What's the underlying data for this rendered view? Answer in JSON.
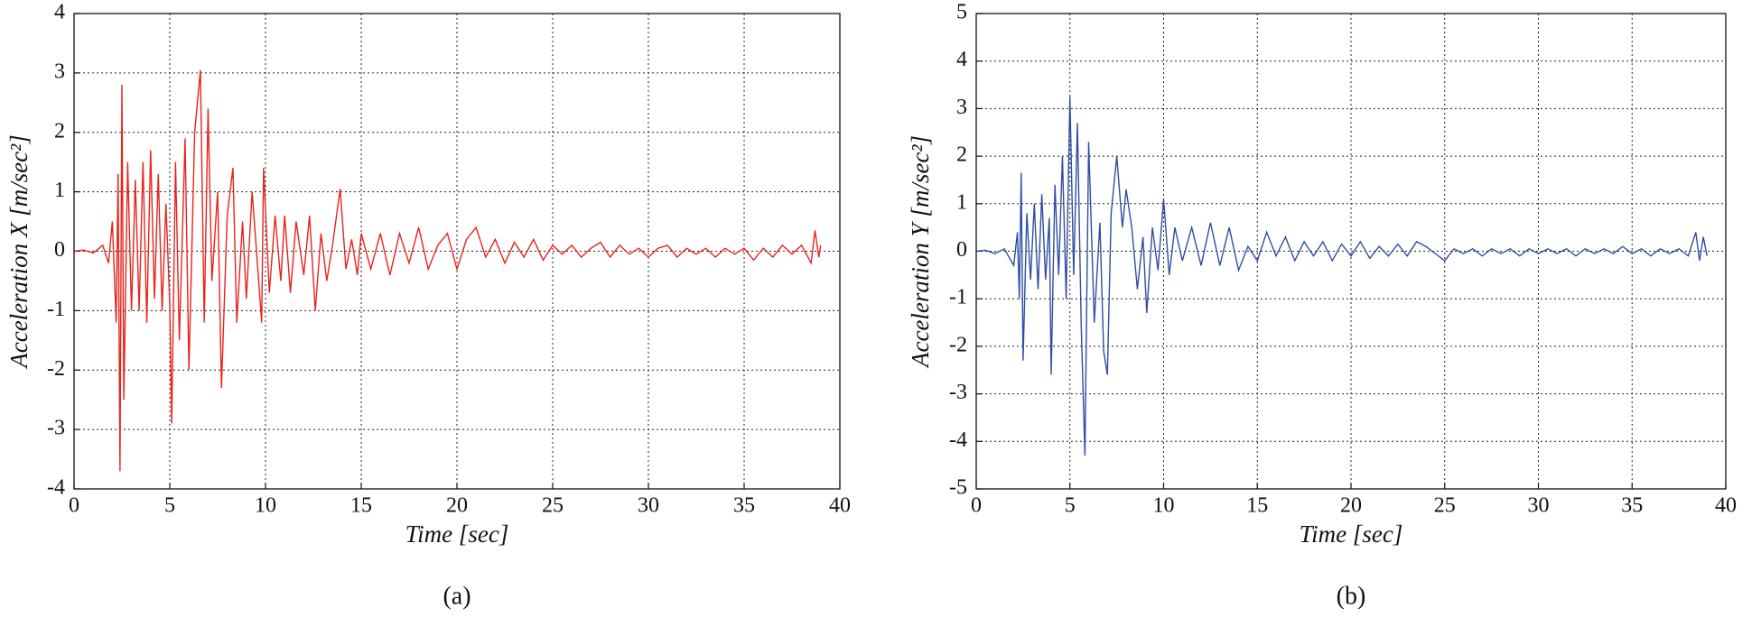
{
  "chart_data": [
    {
      "type": "line",
      "xlabel": "Time [sec]",
      "ylabel": "Acceleration X [m/sec²]",
      "caption": "(a)",
      "xlim": [
        0,
        40
      ],
      "xticks": [
        0,
        5,
        10,
        15,
        20,
        25,
        30,
        35,
        40
      ],
      "ylim": [
        -4,
        4
      ],
      "yticks": [
        -4,
        -3,
        -2,
        -1,
        0,
        1,
        2,
        3,
        4
      ],
      "grid": true,
      "color": "#e8231c",
      "x": [
        0,
        0.5,
        1,
        1.5,
        1.8,
        2.0,
        2.2,
        2.3,
        2.4,
        2.5,
        2.6,
        2.8,
        3.0,
        3.2,
        3.4,
        3.6,
        3.8,
        4.0,
        4.2,
        4.4,
        4.6,
        4.8,
        5.0,
        5.1,
        5.3,
        5.5,
        5.8,
        6.0,
        6.3,
        6.6,
        6.8,
        7.0,
        7.2,
        7.5,
        7.7,
        8.0,
        8.3,
        8.5,
        8.8,
        9.0,
        9.3,
        9.6,
        9.8,
        9.9,
        10.2,
        10.5,
        10.8,
        11.0,
        11.3,
        11.6,
        12.0,
        12.3,
        12.6,
        12.9,
        13.2,
        13.5,
        13.9,
        14.2,
        14.5,
        14.8,
        15.0,
        15.5,
        16.0,
        16.5,
        17.0,
        17.5,
        18.0,
        18.5,
        19.0,
        19.5,
        20.0,
        20.5,
        21.0,
        21.5,
        22.0,
        22.5,
        23.0,
        23.5,
        24.0,
        24.5,
        25.0,
        25.5,
        26,
        26.5,
        27,
        27.5,
        28,
        28.5,
        29,
        29.5,
        30,
        30.5,
        31,
        31.5,
        32,
        32.5,
        33,
        33.5,
        34,
        34.5,
        35,
        35.5,
        36,
        36.5,
        37,
        37.5,
        38,
        38.5,
        38.7,
        38.9,
        39
      ],
      "values": [
        0,
        0.02,
        -0.03,
        0.1,
        -0.2,
        0.5,
        -1.2,
        1.3,
        -3.7,
        2.8,
        -2.5,
        1.5,
        -1.0,
        1.2,
        -1.0,
        1.5,
        -1.2,
        1.7,
        -0.8,
        1.3,
        -1.0,
        0.8,
        -0.9,
        -2.9,
        1.5,
        -1.5,
        1.9,
        -2.0,
        2.0,
        3.05,
        -1.2,
        2.4,
        -0.5,
        1.0,
        -2.3,
        0.6,
        1.4,
        -1.2,
        0.5,
        -0.8,
        1.0,
        -0.3,
        -1.2,
        1.4,
        -0.7,
        0.6,
        -0.5,
        0.6,
        -0.7,
        0.5,
        -0.4,
        0.6,
        -1.0,
        0.3,
        -0.5,
        0.1,
        1.05,
        -0.3,
        0.2,
        -0.4,
        0.3,
        -0.3,
        0.3,
        -0.4,
        0.3,
        -0.2,
        0.4,
        -0.3,
        0.1,
        0.3,
        -0.3,
        0.2,
        0.4,
        -0.1,
        0.2,
        -0.2,
        0.15,
        -0.1,
        0.2,
        -0.15,
        0.1,
        -0.05,
        0.1,
        -0.1,
        0.05,
        0.15,
        -0.1,
        0.1,
        -0.05,
        0.05,
        -0.1,
        0.05,
        0.1,
        -0.1,
        0.05,
        -0.05,
        0.05,
        -0.1,
        0.05,
        -0.05,
        0.05,
        -0.15,
        0.05,
        -0.1,
        0.1,
        -0.05,
        0.1,
        -0.2,
        0.35,
        -0.1,
        0.1
      ]
    },
    {
      "type": "line",
      "xlabel": "Time [sec]",
      "ylabel": "Acceleration Y [m/sec²]",
      "caption": "(b)",
      "xlim": [
        0,
        40
      ],
      "xticks": [
        0,
        5,
        10,
        15,
        20,
        25,
        30,
        35,
        40
      ],
      "ylim": [
        -5,
        5
      ],
      "yticks": [
        -5,
        -4,
        -3,
        -2,
        -1,
        0,
        1,
        2,
        3,
        4,
        5
      ],
      "grid": true,
      "color": "#2e4ea3",
      "x": [
        0,
        0.5,
        1,
        1.5,
        2.0,
        2.2,
        2.3,
        2.4,
        2.5,
        2.7,
        2.9,
        3.1,
        3.3,
        3.5,
        3.7,
        3.9,
        4.0,
        4.2,
        4.4,
        4.6,
        4.8,
        5.0,
        5.2,
        5.4,
        5.6,
        5.8,
        6.0,
        6.3,
        6.6,
        6.8,
        7.0,
        7.2,
        7.5,
        7.8,
        8.0,
        8.3,
        8.6,
        8.9,
        9.1,
        9.4,
        9.7,
        10.0,
        10.3,
        10.6,
        11.0,
        11.5,
        12,
        12.5,
        13,
        13.5,
        14,
        14.5,
        15,
        15.5,
        16,
        16.5,
        17,
        17.5,
        18,
        18.5,
        19,
        19.5,
        20,
        20.5,
        21,
        21.5,
        22,
        22.5,
        23,
        23.5,
        24,
        24.5,
        25,
        25.5,
        26,
        26.5,
        27,
        27.5,
        28,
        28.5,
        29,
        29.5,
        30,
        30.5,
        31,
        31.5,
        32,
        32.5,
        33,
        33.5,
        34,
        34.5,
        35,
        35.5,
        36,
        36.5,
        37,
        37.5,
        38,
        38.4,
        38.6,
        38.8,
        39
      ],
      "values": [
        0,
        0.02,
        -0.05,
        0.05,
        -0.3,
        0.4,
        -1.0,
        1.65,
        -2.3,
        0.8,
        -0.6,
        1.0,
        -0.8,
        1.2,
        -0.6,
        0.7,
        -2.6,
        1.4,
        -0.5,
        2.0,
        -1.0,
        3.25,
        -0.5,
        2.7,
        -1.5,
        -4.3,
        2.3,
        -1.5,
        0.6,
        -2.1,
        -2.6,
        0.8,
        2.0,
        0.5,
        1.3,
        0.5,
        -0.8,
        0.3,
        -1.3,
        0.5,
        -0.4,
        1.1,
        -0.5,
        0.5,
        -0.2,
        0.5,
        -0.3,
        0.6,
        -0.3,
        0.5,
        -0.4,
        0.1,
        -0.2,
        0.4,
        -0.1,
        0.3,
        -0.2,
        0.2,
        -0.1,
        0.2,
        -0.2,
        0.15,
        -0.1,
        0.2,
        -0.15,
        0.1,
        -0.1,
        0.15,
        -0.1,
        0.2,
        0.1,
        -0.05,
        -0.2,
        0.05,
        -0.05,
        0.05,
        -0.1,
        0.05,
        -0.05,
        0.05,
        -0.1,
        0.05,
        -0.05,
        0.05,
        -0.05,
        0.05,
        -0.1,
        0.05,
        -0.05,
        0.05,
        -0.05,
        0.1,
        -0.05,
        0.05,
        -0.1,
        0.05,
        -0.05,
        0.05,
        -0.1,
        0.4,
        -0.2,
        0.3,
        -0.1
      ]
    }
  ]
}
